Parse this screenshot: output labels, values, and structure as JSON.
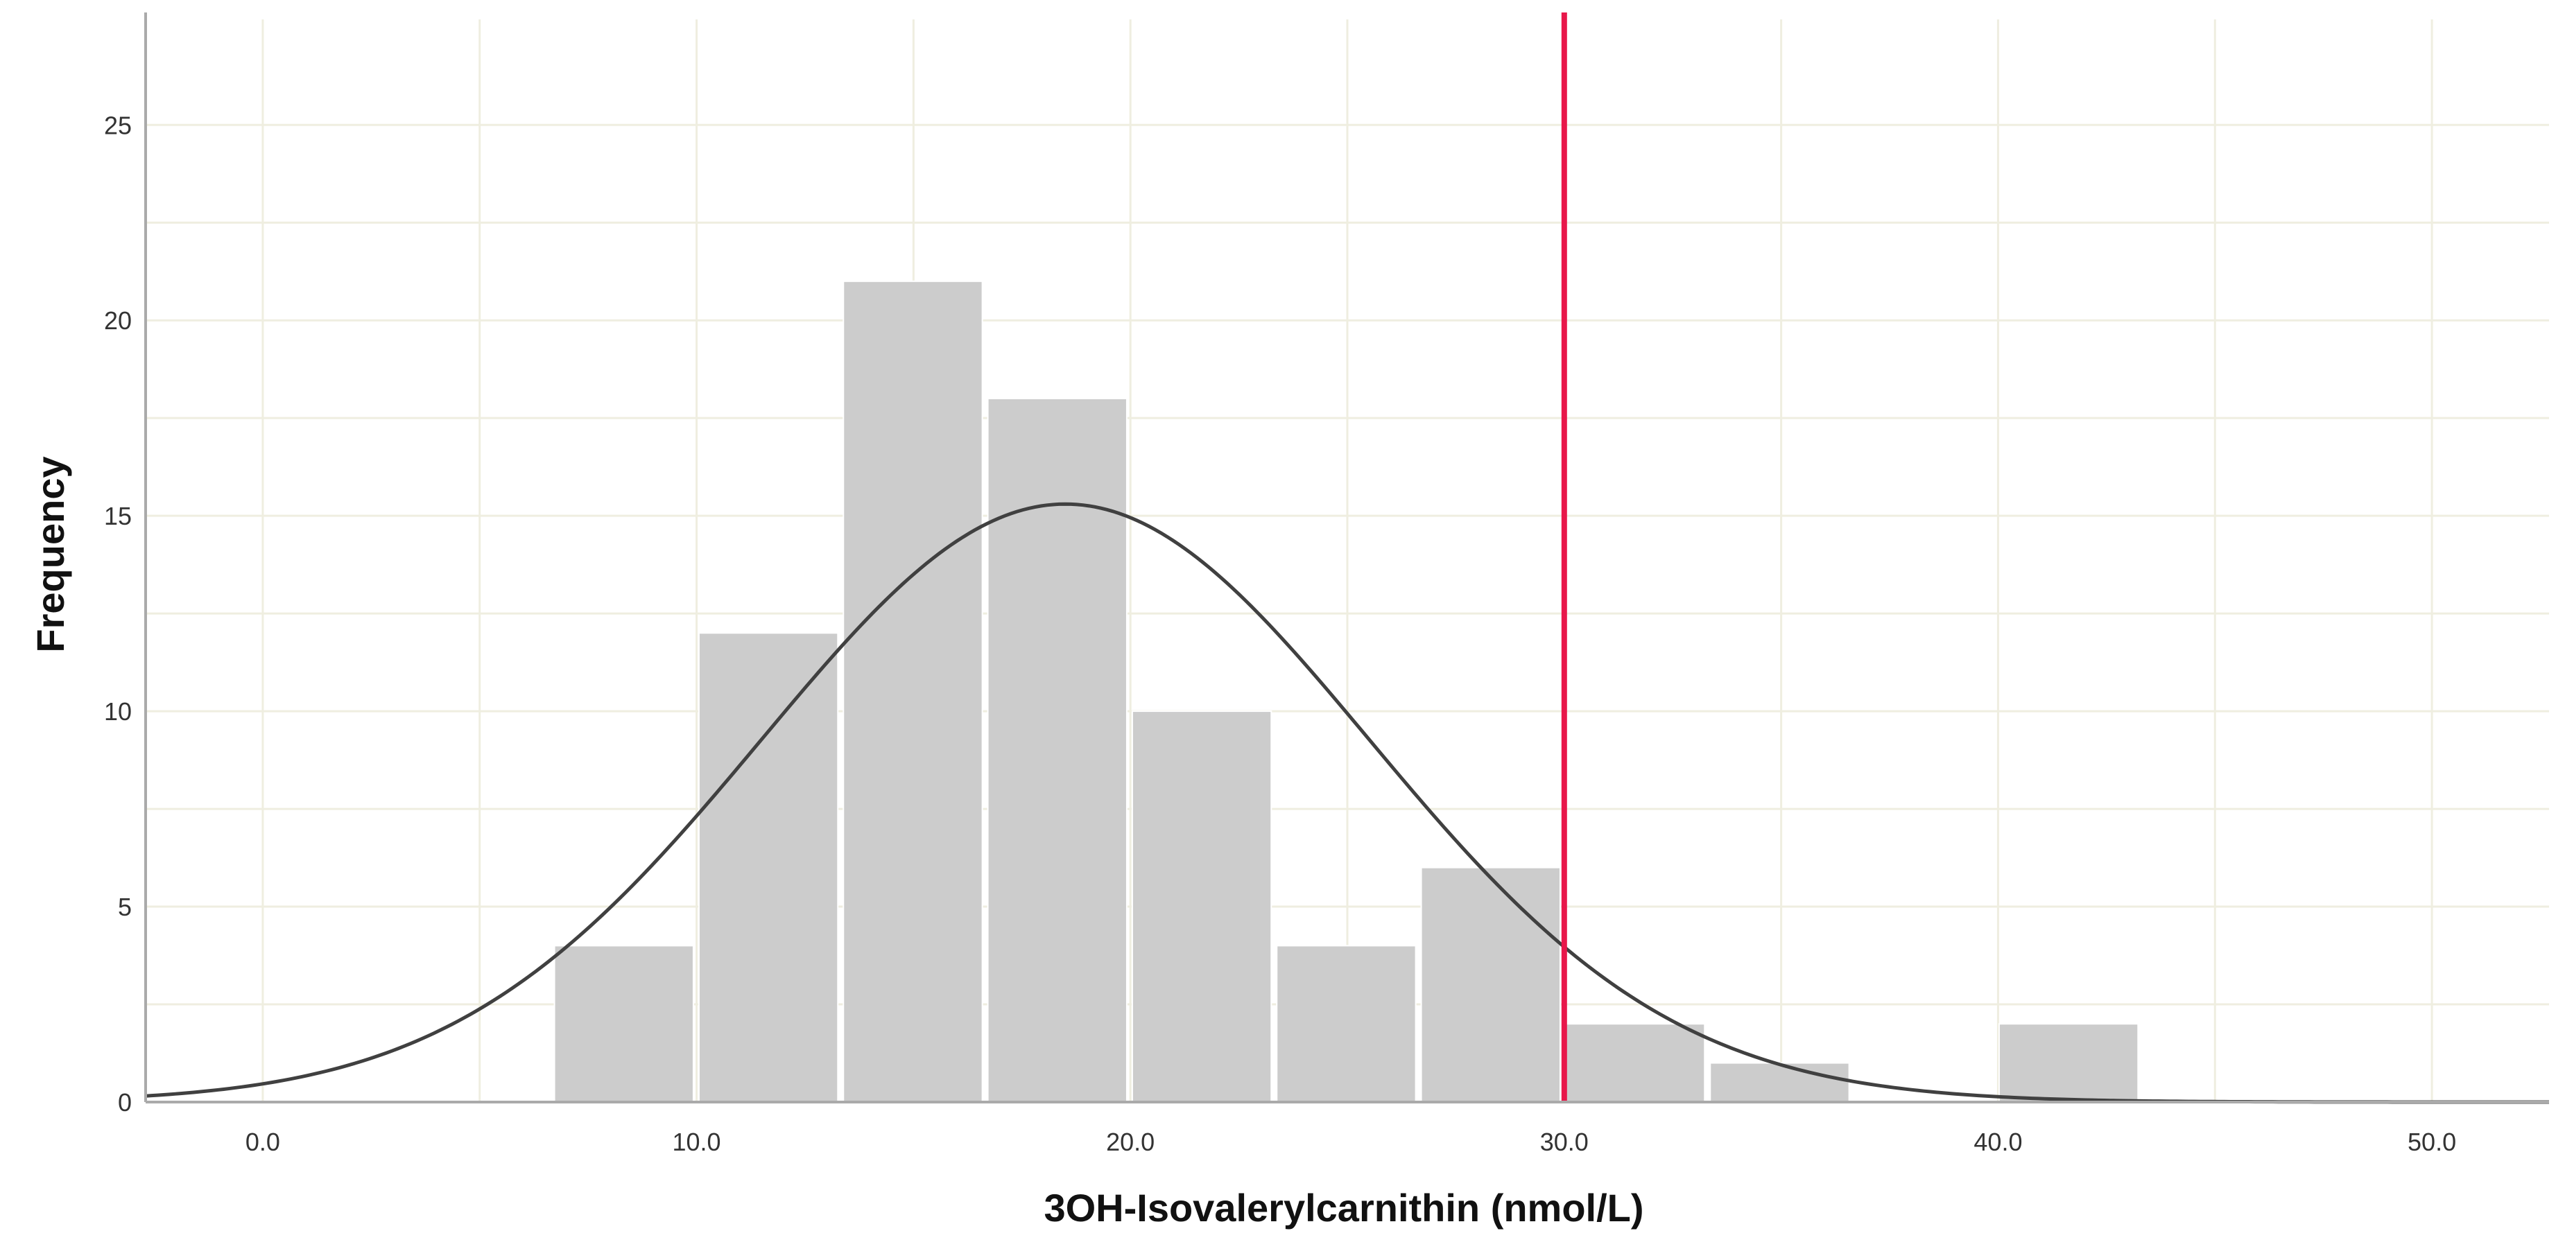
{
  "chart_data": {
    "type": "bar",
    "title": "",
    "xlabel": "3OH-Isovalerylcarnithin (nmol/L)",
    "ylabel": "Frequency",
    "xlim": [
      -2.7,
      52.7
    ],
    "ylim": [
      0,
      27.7
    ],
    "x_ticks": [
      0,
      10,
      20,
      30,
      40,
      50
    ],
    "x_tick_labels": [
      "0.0",
      "10.0",
      "20.0",
      "30.0",
      "40.0",
      "50.0"
    ],
    "y_ticks": [
      0,
      5,
      10,
      15,
      20,
      25
    ],
    "y_tick_labels": [
      "0",
      "5",
      "10",
      "15",
      "20",
      "25"
    ],
    "x_minor_gridlines": [
      5,
      15,
      25,
      35,
      45
    ],
    "y_minor_gridlines": [
      2.5,
      7.5,
      12.5,
      17.5,
      22.5
    ],
    "grid": true,
    "bin_width": 3.33,
    "bins": [
      {
        "start": 6.66,
        "end": 9.99,
        "count": 4
      },
      {
        "start": 9.99,
        "end": 13.32,
        "count": 12
      },
      {
        "start": 13.32,
        "end": 16.65,
        "count": 21
      },
      {
        "start": 16.65,
        "end": 19.98,
        "count": 18
      },
      {
        "start": 19.98,
        "end": 23.31,
        "count": 10
      },
      {
        "start": 23.31,
        "end": 26.64,
        "count": 4
      },
      {
        "start": 26.64,
        "end": 29.97,
        "count": 6
      },
      {
        "start": 29.97,
        "end": 33.3,
        "count": 2
      },
      {
        "start": 33.3,
        "end": 36.63,
        "count": 1
      },
      {
        "start": 36.63,
        "end": 39.96,
        "count": 0
      },
      {
        "start": 39.96,
        "end": 43.29,
        "count": 2
      }
    ],
    "normal_curve": {
      "mean": 18.5,
      "sd": 7.0,
      "peak": 15.3
    },
    "reference_line": {
      "x": 30.0,
      "color": "#e8174a"
    },
    "colors": {
      "bar_fill": "#cccccc",
      "bar_stroke": "#ffffff",
      "curve": "#404040",
      "grid": "#efeee0",
      "axis": "#aaaaaa",
      "background": "#ffffff"
    }
  }
}
